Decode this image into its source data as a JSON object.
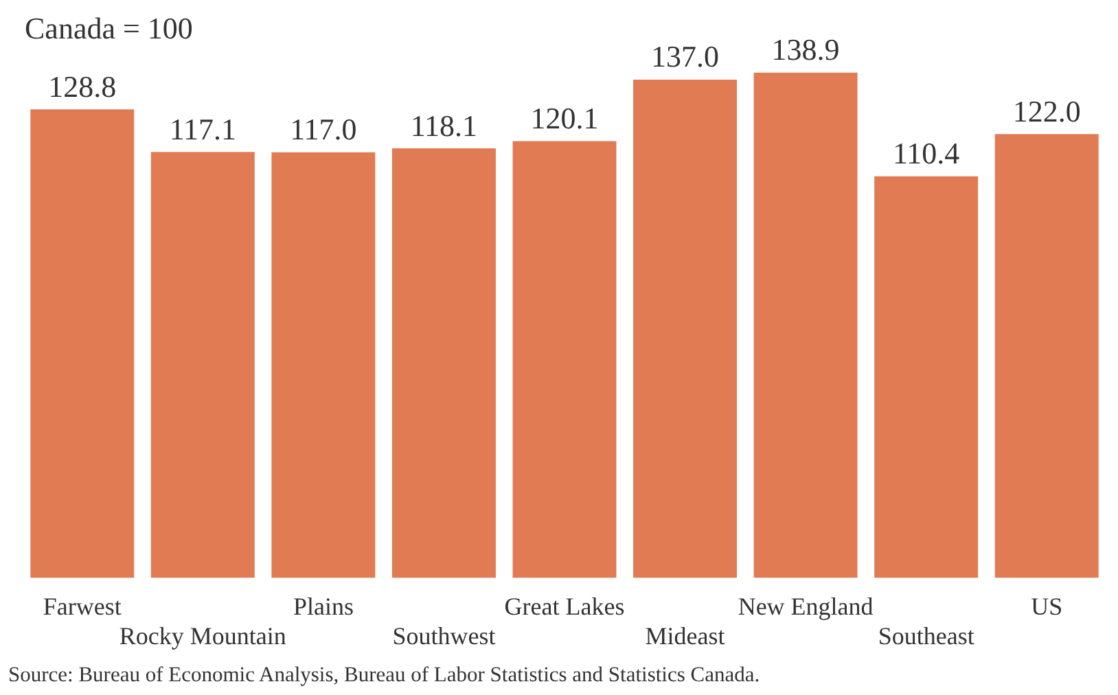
{
  "chart_data": {
    "type": "bar",
    "title": "Canada = 100",
    "categories": [
      "Farwest",
      "Rocky Mountain",
      "Plains",
      "Southwest",
      "Great Lakes",
      "Mideast",
      "New England",
      "Southeast",
      "US"
    ],
    "values": [
      128.8,
      117.1,
      117.0,
      118.1,
      120.1,
      137.0,
      138.9,
      110.4,
      122.0
    ],
    "value_labels": [
      "128.8",
      "117.1",
      "117.0",
      "118.1",
      "120.1",
      "137.0",
      "138.9",
      "110.4",
      "122.0"
    ],
    "color": "#e07b54",
    "legend": false,
    "annotations": [
      "Source: Bureau of Economic Analysis, Bureau of Labor Statistics and Statistics Canada."
    ]
  }
}
